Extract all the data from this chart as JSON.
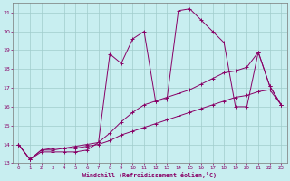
{
  "xlabel": "Windchill (Refroidissement éolien,°C)",
  "bg_color": "#c8eef0",
  "grid_color": "#a0cccc",
  "line_color": "#880066",
  "xlim": [
    -0.5,
    23.5
  ],
  "ylim": [
    13,
    21.5
  ],
  "yticks": [
    13,
    14,
    15,
    16,
    17,
    18,
    19,
    20,
    21
  ],
  "xticks": [
    0,
    1,
    2,
    3,
    4,
    5,
    6,
    7,
    8,
    9,
    10,
    11,
    12,
    13,
    14,
    15,
    16,
    17,
    18,
    19,
    20,
    21,
    22,
    23
  ],
  "line1_x": [
    0,
    1,
    2,
    3,
    4,
    5,
    6,
    7,
    8,
    9,
    10,
    11,
    12,
    13,
    14,
    15,
    16,
    17,
    18,
    19,
    20,
    21,
    22,
    23
  ],
  "line1_y": [
    14.0,
    13.2,
    13.6,
    13.6,
    13.6,
    13.6,
    13.7,
    14.1,
    18.8,
    18.3,
    19.6,
    20.0,
    16.3,
    16.4,
    21.1,
    21.2,
    20.6,
    20.0,
    19.4,
    16.0,
    16.0,
    18.9,
    17.1,
    16.1
  ],
  "line2_x": [
    0,
    1,
    2,
    3,
    4,
    5,
    6,
    7,
    8,
    9,
    10,
    11,
    12,
    13,
    14,
    15,
    16,
    17,
    18,
    19,
    20,
    21,
    22,
    23
  ],
  "line2_y": [
    14.0,
    13.2,
    13.7,
    13.8,
    13.8,
    13.9,
    14.0,
    14.1,
    14.6,
    15.2,
    15.7,
    16.1,
    16.3,
    16.5,
    16.7,
    16.9,
    17.2,
    17.5,
    17.8,
    17.9,
    18.1,
    18.9,
    17.1,
    16.1
  ],
  "line3_x": [
    0,
    1,
    2,
    3,
    4,
    5,
    6,
    7,
    8,
    9,
    10,
    11,
    12,
    13,
    14,
    15,
    16,
    17,
    18,
    19,
    20,
    21,
    22,
    23
  ],
  "line3_y": [
    14.0,
    13.2,
    13.7,
    13.7,
    13.8,
    13.8,
    13.9,
    14.0,
    14.2,
    14.5,
    14.7,
    14.9,
    15.1,
    15.3,
    15.5,
    15.7,
    15.9,
    16.1,
    16.3,
    16.5,
    16.6,
    16.8,
    16.9,
    16.1
  ]
}
